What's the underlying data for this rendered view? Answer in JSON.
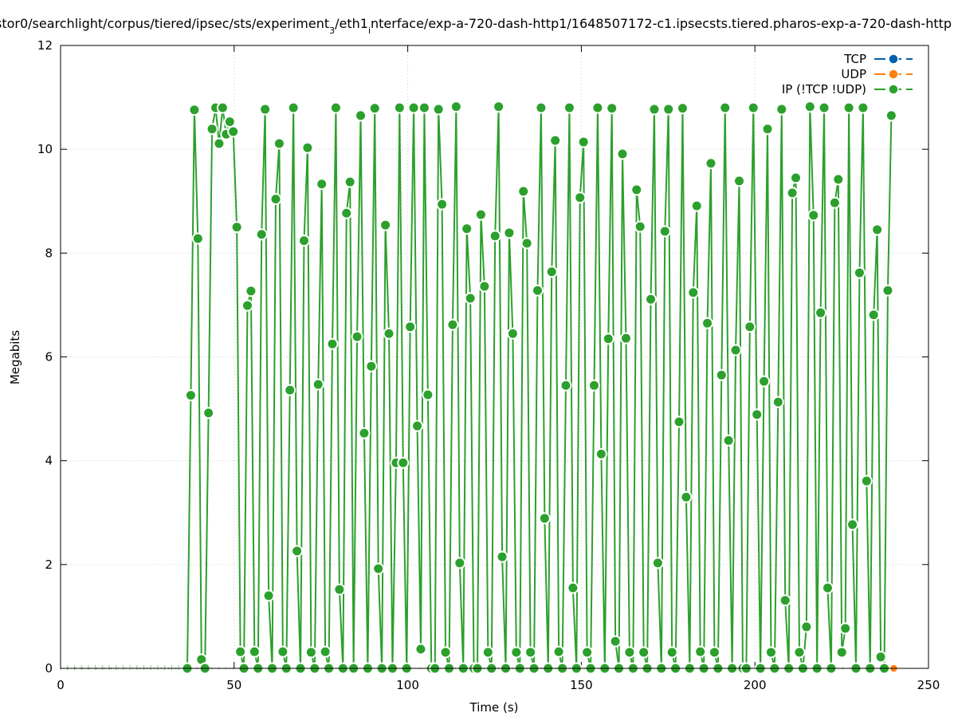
{
  "chart_data": {
    "type": "line",
    "title_parts": [
      {
        "text": "stor0/searchlight/corpus/tiered/ipsec/sts/experiment",
        "sub": false
      },
      {
        "text": "3",
        "sub": true
      },
      {
        "text": "/eth1",
        "sub": false
      },
      {
        "text": "i",
        "sub": true
      },
      {
        "text": "nterface/exp-a-720-dash-http1/1648507172-c1.ipsecsts.tiered.pharos-exp-a-720-dash-http",
        "sub": false
      }
    ],
    "xlabel": "Time (s)",
    "ylabel": "Megabits",
    "xlim": [
      0,
      250
    ],
    "ylim": [
      0,
      12
    ],
    "xticks": [
      "0",
      "50",
      "100",
      "150",
      "200",
      "250"
    ],
    "yticks": [
      "0",
      "2",
      "4",
      "6",
      "8",
      "10",
      "12"
    ],
    "grid": true,
    "legend_position": "top-right",
    "colors": {
      "tcp": "#0060ad",
      "udp": "#ff7f0e",
      "ip": "#2ca02c"
    },
    "series": [
      {
        "name": "TCP",
        "key": "tcp",
        "x_start": 0,
        "x_end": 240,
        "values": [
          0,
          0
        ]
      },
      {
        "name": "UDP",
        "key": "udp",
        "x_start": 0,
        "x_end": 240,
        "values": [
          0,
          0
        ]
      },
      {
        "name": "IP (!TCP  !UDP)",
        "key": "ip",
        "x_start": 36.5,
        "x_end": 239.3,
        "leading_zero_range": [
          0,
          36
        ],
        "values": [
          0,
          5.26,
          10.76,
          8.28,
          0.17,
          0,
          4.92,
          10.39,
          10.8,
          10.11,
          10.8,
          10.29,
          10.53,
          10.34,
          8.5,
          0.32,
          0,
          6.99,
          7.27,
          0.32,
          0,
          8.36,
          10.77,
          1.4,
          0,
          9.04,
          10.11,
          0.32,
          0,
          5.36,
          10.8,
          2.26,
          0,
          8.24,
          10.03,
          0.31,
          0,
          5.47,
          9.33,
          0.32,
          0,
          6.25,
          10.8,
          1.52,
          0,
          8.77,
          9.37,
          0,
          6.39,
          10.65,
          4.53,
          0,
          5.82,
          10.79,
          1.92,
          0,
          8.54,
          6.45,
          0,
          3.96,
          10.8,
          3.96,
          0,
          6.58,
          10.8,
          4.67,
          0.37,
          10.8,
          5.27,
          0,
          0,
          10.77,
          8.94,
          0.31,
          0,
          6.62,
          10.82,
          2.03,
          0,
          8.47,
          7.13,
          0,
          0,
          8.74,
          7.36,
          0.31,
          0,
          8.33,
          10.82,
          2.15,
          0,
          8.39,
          6.45,
          0.31,
          0,
          9.19,
          8.19,
          0.31,
          0,
          7.28,
          10.8,
          2.89,
          0,
          7.64,
          10.17,
          0.32,
          0,
          5.45,
          10.8,
          1.55,
          0,
          9.07,
          10.14,
          0.31,
          0,
          5.45,
          10.8,
          4.13,
          0,
          6.35,
          10.79,
          0.52,
          0,
          9.91,
          6.36,
          0.31,
          0,
          9.22,
          8.51,
          0.31,
          0,
          7.11,
          10.77,
          2.03,
          0,
          8.42,
          10.77,
          0.31,
          0,
          4.75,
          10.79,
          3.3,
          0,
          7.24,
          8.91,
          0.32,
          0,
          6.65,
          9.73,
          0.31,
          0,
          5.65,
          10.8,
          4.39,
          0,
          6.13,
          9.39,
          0,
          0,
          6.58,
          10.8,
          4.89,
          0,
          5.53,
          10.39,
          0.31,
          0,
          5.13,
          10.77,
          1.31,
          0,
          9.16,
          9.45,
          0.31,
          0,
          0.8,
          10.82,
          8.73,
          0,
          6.85,
          10.8,
          1.55,
          0,
          8.97,
          9.42,
          0.31,
          0.77,
          10.8,
          2.77,
          0,
          7.62,
          10.8,
          3.61,
          0,
          6.81,
          8.45,
          0.22,
          0,
          7.28,
          10.65
        ]
      }
    ]
  }
}
